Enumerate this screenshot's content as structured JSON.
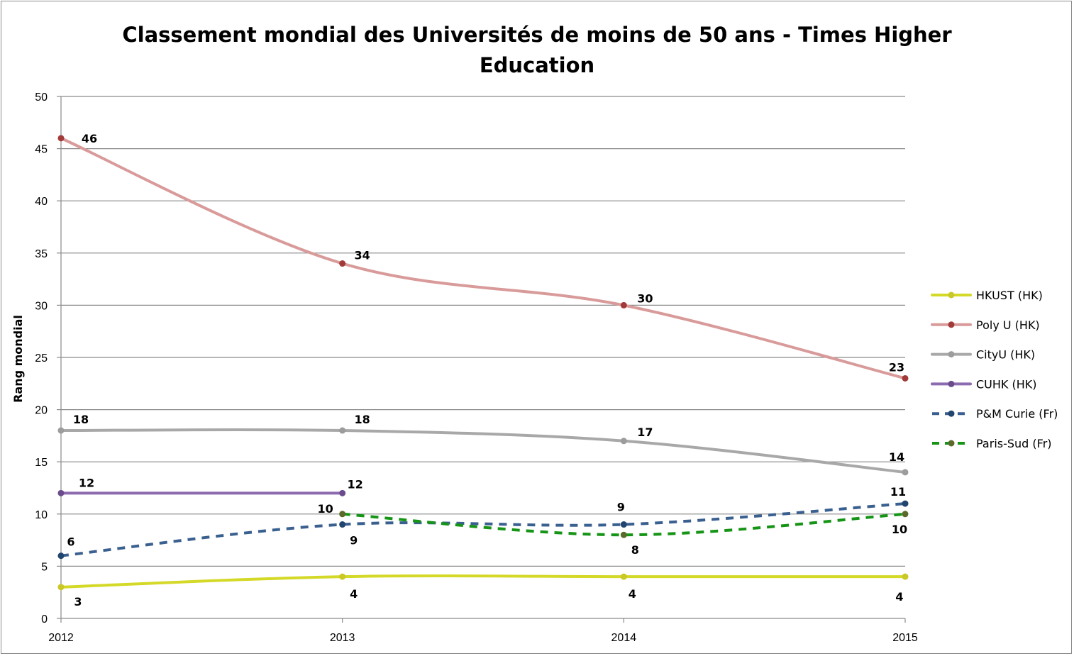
{
  "chart_data": {
    "type": "line",
    "title_line1": "Classement mondial des Universités de moins de 50 ans - Times Higher",
    "title_line2": "Education",
    "xlabel": "",
    "ylabel": "Rang mondial",
    "x": [
      "2012",
      "2013",
      "2014",
      "2015"
    ],
    "ylim": [
      0,
      50
    ],
    "yticks": [
      "0",
      "5",
      "10",
      "15",
      "20",
      "25",
      "30",
      "35",
      "40",
      "45",
      "50"
    ],
    "grid": true,
    "legend_position": "right",
    "series": [
      {
        "name": "HKUST (HK)",
        "values": [
          3,
          4,
          4,
          4
        ],
        "labels": [
          "3",
          "4",
          "4",
          "4"
        ],
        "color": "#d4d928",
        "marker": "#c9c826",
        "dashed": false
      },
      {
        "name": "Poly U (HK)",
        "values": [
          46,
          34,
          30,
          23
        ],
        "labels": [
          "46",
          "34",
          "30",
          "23"
        ],
        "color": "#d99a9a",
        "marker": "#a33a3a",
        "dashed": false
      },
      {
        "name": "CityU (HK)",
        "values": [
          18,
          18,
          17,
          14
        ],
        "labels": [
          "18",
          "18",
          "17",
          "14"
        ],
        "color": "#a8a8a8",
        "marker": "#9c9c9c",
        "dashed": false
      },
      {
        "name": "CUHK (HK)",
        "values": [
          12,
          12,
          null,
          null
        ],
        "labels": [
          "12",
          "12",
          null,
          null
        ],
        "color": "#8c6bb0",
        "marker": "#6a4c8c",
        "dashed": false
      },
      {
        "name": "P&M Curie (Fr)",
        "values": [
          6,
          9,
          9,
          11
        ],
        "labels": [
          "6",
          "9",
          "9",
          "11"
        ],
        "color": "#3a6090",
        "marker": "#21456e",
        "dashed": true
      },
      {
        "name": "Paris-Sud (Fr)",
        "values": [
          null,
          10,
          8,
          10
        ],
        "labels": [
          null,
          "10",
          "8",
          "10"
        ],
        "color": "#159415",
        "marker": "#5a6a2a",
        "dashed": true
      }
    ]
  }
}
